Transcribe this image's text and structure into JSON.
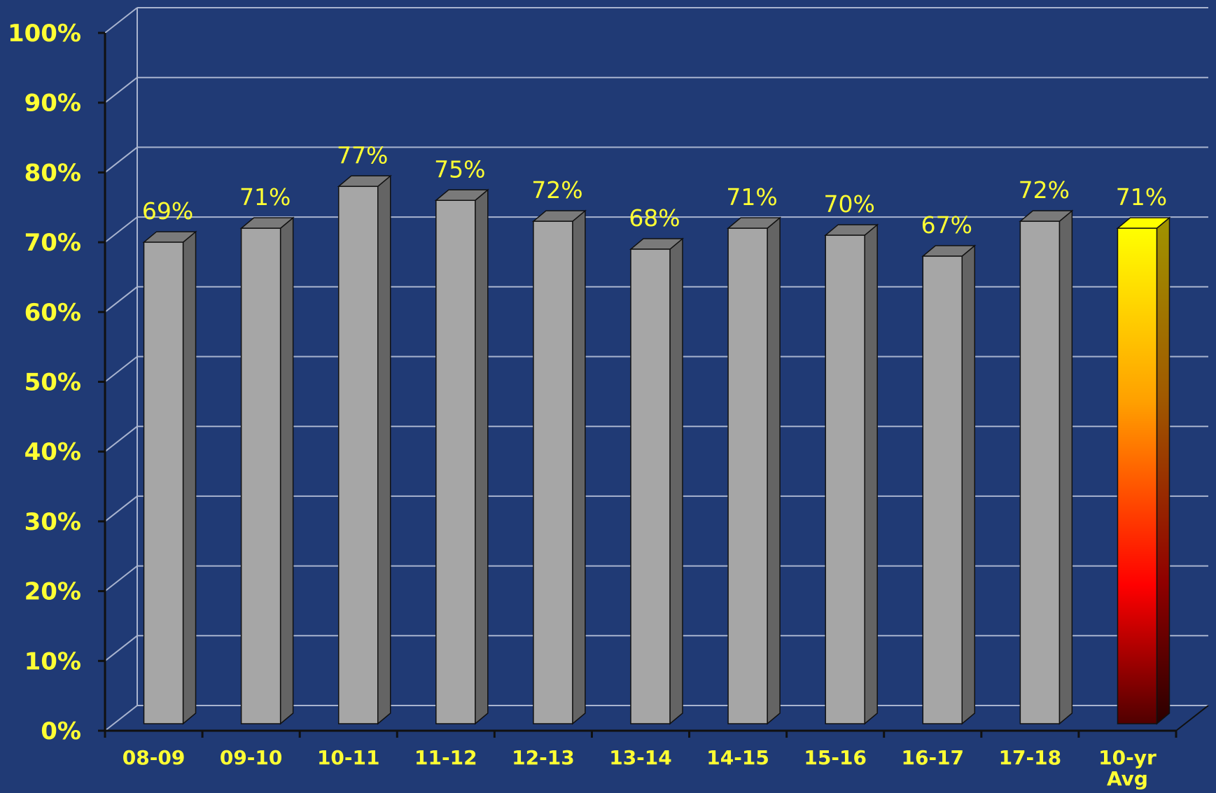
{
  "chart_data": {
    "type": "bar",
    "style": "3d-column",
    "categories": [
      "08-09",
      "09-10",
      "10-11",
      "11-12",
      "12-13",
      "13-14",
      "14-15",
      "15-16",
      "16-17",
      "17-18",
      "10-yr Avg"
    ],
    "values": [
      69,
      71,
      77,
      75,
      72,
      68,
      71,
      70,
      67,
      72,
      71
    ],
    "data_labels": [
      "69%",
      "71%",
      "77%",
      "75%",
      "72%",
      "68%",
      "71%",
      "70%",
      "67%",
      "72%",
      "71%"
    ],
    "highlight_index": 10,
    "ylim": [
      0,
      100
    ],
    "yticks": [
      0,
      10,
      20,
      30,
      40,
      50,
      60,
      70,
      80,
      90,
      100
    ],
    "ytick_labels": [
      "0%",
      "10%",
      "20%",
      "30%",
      "40%",
      "50%",
      "60%",
      "70%",
      "80%",
      "90%",
      "100%"
    ],
    "grid": true,
    "legend": "none",
    "colors": {
      "background": "#203a75",
      "grid": "#a9b4cf",
      "axis": "#101010",
      "bar_front": "#a6a6a6",
      "bar_side": "#646464",
      "bar_top": "#7a7a7a",
      "highlight_top": "#ffff00",
      "highlight_bottom": "#500000",
      "label": "#ffff33"
    }
  }
}
